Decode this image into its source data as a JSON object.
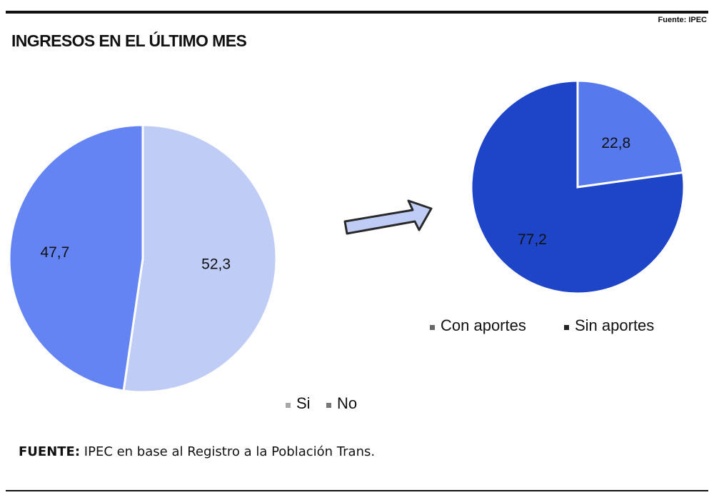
{
  "header": {
    "source_top": "Fuente: IPEC",
    "title": "INGRESOS EN EL ÚLTIMO MES"
  },
  "footer": {
    "source_label": "FUENTE:",
    "source_text": "IPEC en base al Registro a la Población Trans."
  },
  "arrow_icon": "right-arrow-icon",
  "chart_data": [
    {
      "type": "pie",
      "title": "",
      "slices": [
        {
          "label": "Si",
          "value": 52.3,
          "display": "52,3",
          "color": "#bfccf6"
        },
        {
          "label": "No",
          "value": 47.7,
          "display": "47,7",
          "color": "#6584f4"
        }
      ],
      "legend": [
        {
          "label": "Si",
          "color": "#bfccf6"
        },
        {
          "label": "No",
          "color": "#6584f4"
        }
      ],
      "legend_position": "bottom"
    },
    {
      "type": "pie",
      "title": "",
      "slices": [
        {
          "label": "Con aportes",
          "value": 22.8,
          "display": "22,8",
          "color": "#5679ee"
        },
        {
          "label": "Sin aportes",
          "value": 77.2,
          "display": "77,2",
          "color": "#1e45c8"
        }
      ],
      "legend": [
        {
          "label": "Con aportes",
          "color": "#5679ee"
        },
        {
          "label": "Sin aportes",
          "color": "#1e45c8"
        }
      ],
      "legend_position": "bottom"
    }
  ]
}
